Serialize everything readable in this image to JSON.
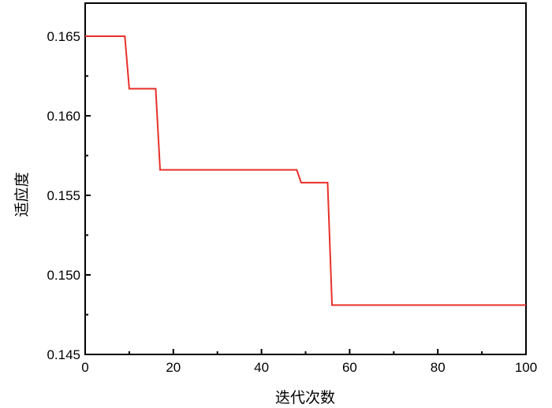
{
  "chart_data": {
    "type": "line",
    "title": "",
    "xlabel": "迭代次数",
    "ylabel": "适应度",
    "xlim": [
      0,
      100
    ],
    "ylim": [
      0.145,
      0.167
    ],
    "xticks": [
      "0",
      "20",
      "40",
      "60",
      "80",
      "100"
    ],
    "yticks": [
      "0.145",
      "0.150",
      "0.155",
      "0.160",
      "0.165"
    ],
    "grid": false,
    "legend": "none",
    "series": [
      {
        "color": "#e8302a",
        "x": [
          0,
          9,
          10,
          16,
          17,
          48,
          49,
          55,
          56,
          100
        ],
        "y": [
          0.165,
          0.165,
          0.1617,
          0.1617,
          0.1566,
          0.1566,
          0.1558,
          0.1558,
          0.1481,
          0.1481
        ]
      }
    ]
  }
}
